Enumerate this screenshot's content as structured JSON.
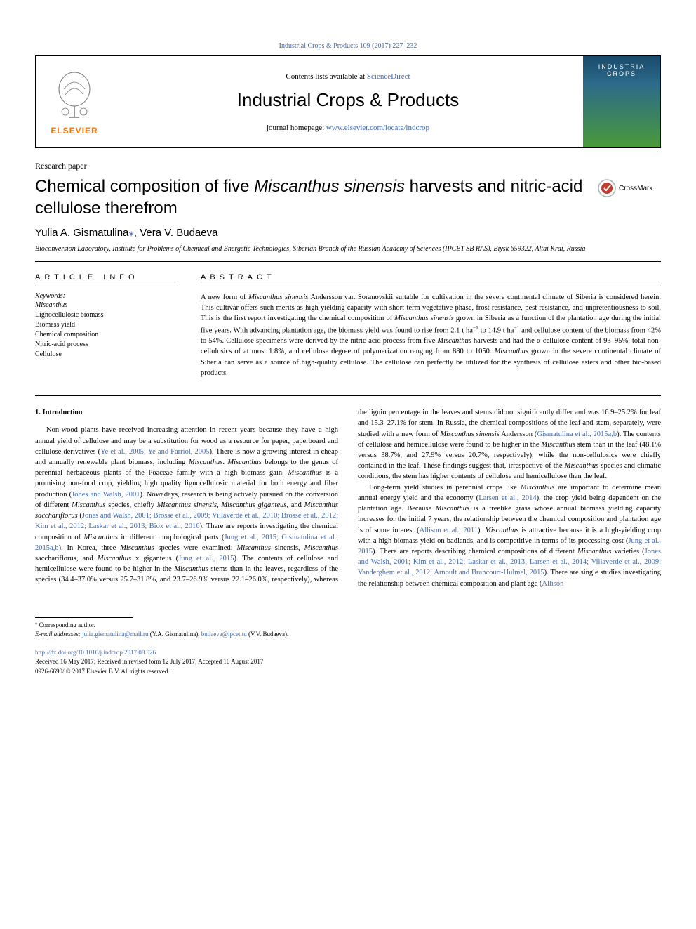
{
  "top_citation": {
    "prefix": "",
    "link_text": "Industrial Crops & Products 109 (2017) 227–232",
    "colors": {
      "link": "#4169b0"
    }
  },
  "journal_box": {
    "contents_label": "Contents lists available at ",
    "contents_link": "ScienceDirect",
    "journal_name": "Industrial Crops & Products",
    "homepage_label": "journal homepage: ",
    "homepage_link": "www.elsevier.com/locate/indcrop",
    "publisher_logo_label": "ELSEVIER",
    "cover": {
      "line1": "INDUSTRIA",
      "line2": "CROPS"
    },
    "colors": {
      "elsevier_orange": "#ff7700",
      "cover_grad_top": "#1a4a6a",
      "cover_grad_bot": "#4a9a3a"
    }
  },
  "paper_type": "Research paper",
  "title": {
    "pre": "Chemical composition of five ",
    "ital": "Miscanthus sinensis",
    "post": " harvests and nitric-acid cellulose therefrom"
  },
  "crossmark_label": "CrossMark",
  "authors": {
    "a1": "Yulia A. Gismatulina",
    "a1_mark": "⁎",
    "sep": ", ",
    "a2": "Vera V. Budaeva"
  },
  "affiliation": "Bioconversion Laboratory, Institute for Problems of Chemical and Energetic Technologies, Siberian Branch of the Russian Academy of Sciences (IPCET SB RAS), Biysk 659322, Altai Krai, Russia",
  "article_info": {
    "heading": "ARTICLE INFO",
    "kw_heading": "Keywords:",
    "keywords": [
      "Miscanthus",
      "Lignocellulosic biomass",
      "Biomass yield",
      "Chemical composition",
      "Nitric-acid process",
      "Cellulose"
    ]
  },
  "abstract": {
    "heading": "ABSTRACT",
    "text_parts": [
      {
        "t": "A new form of "
      },
      {
        "i": "Miscanthus sinensis"
      },
      {
        "t": " Andersson var. Soranovskii suitable for cultivation in the severe continental climate of Siberia is considered herein. This cultivar offers such merits as high yielding capacity with short-term vegetative phase, frost resistance, pest resistance, and unpretentiousness to soil. This is the first report investigating the chemical composition of "
      },
      {
        "i": "Miscanthus sinensis"
      },
      {
        "t": " grown in Siberia as a function of the plantation age during the initial five years. With advancing plantation age, the biomass yield was found to rise from 2.1 t ha"
      },
      {
        "sup": "−1"
      },
      {
        "t": " to 14.9 t ha"
      },
      {
        "sup": "−1"
      },
      {
        "t": " and cellulose content of the biomass from 42% to 54%. Cellulose specimens were derived by the nitric-acid process from five "
      },
      {
        "i": "Miscanthus"
      },
      {
        "t": " harvests and had the α-cellulose content of 93–95%, total non-cellulosics of at most 1.8%, and cellulose degree of polymerization ranging from 880 to 1050. "
      },
      {
        "i": "Miscanthus"
      },
      {
        "t": " grown in the severe continental climate of Siberia can serve as a source of high-quality cellulose. The cellulose can perfectly be utilized for the synthesis of cellulose esters and other bio-based products."
      }
    ]
  },
  "sections": {
    "intro_head": "1. Introduction",
    "para1": [
      {
        "t": "Non-wood plants have received increasing attention in recent years because they have a high annual yield of cellulose and may be a substitution for wood as a resource for paper, paperboard and cellulose derivatives ("
      },
      {
        "a": "Ye et al., 2005; Ye and Farriol, 2005"
      },
      {
        "t": "). There is now a growing interest in cheap and annually renewable plant biomass, including "
      },
      {
        "i": "Miscanthus"
      },
      {
        "t": ". "
      },
      {
        "i": "Miscanthus"
      },
      {
        "t": " belongs to the genus of perennial herbaceous plants of the Poaceae family with a high biomass gain. "
      },
      {
        "i": "Miscanthus"
      },
      {
        "t": " is a promising non-food crop, yielding high quality lignocellulosic material for both energy and fiber production ("
      },
      {
        "a": "Jones and Walsh, 2001"
      },
      {
        "t": "). Nowadays, research is being actively pursued on the conversion of different "
      },
      {
        "i": "Miscanthus"
      },
      {
        "t": " species, chiefly "
      },
      {
        "i": "Miscanthus sinensis"
      },
      {
        "t": ", "
      },
      {
        "i": "Miscanthus giganteus"
      },
      {
        "t": ", and "
      },
      {
        "i": "Miscanthus sacchariflorus"
      },
      {
        "t": " ("
      },
      {
        "a": "Jones and Walsh, 2001; Brosse et al., 2009; Villaverde et al., 2010; Brosse et al., 2012; Kim et al., 2012; Laskar et al., 2013; Biox et al., 2016"
      },
      {
        "t": "). There are reports investigating the chemical composition of "
      },
      {
        "i": "Miscanthus"
      },
      {
        "t": " in different morphological parts ("
      },
      {
        "a": "Jung et al., 2015; Gismatulina et al., 2015a,b"
      },
      {
        "t": "). In Korea, three "
      },
      {
        "i": "Miscanthus"
      },
      {
        "t": " species were examined: "
      },
      {
        "i": "Miscanthus"
      },
      {
        "t": " sinensis, "
      },
      {
        "i": "Miscanthus"
      },
      {
        "t": " sacchariflorus, and "
      },
      {
        "i": "Miscanthus"
      },
      {
        "t": " x giganteus ("
      },
      {
        "a": "Jung et al., 2015"
      },
      {
        "t": "). The contents of cellulose and hemicellulose were found to be higher in the "
      },
      {
        "i": "Miscanthus"
      },
      {
        "t": " stems than in the leaves, regardless of the species (34.4–37.0% versus 25.7–31.8%, and 23.7–26.9% versus 22.1–26.0%, respectively), whereas the lignin percentage in the leaves and stems did not significantly differ and was 16.9–25.2% for leaf and 15.3–27.1% for stem. In Russia, the chemical compositions of the leaf and stem, separately, were studied with a new form of "
      },
      {
        "i": "Miscanthus sinensis"
      },
      {
        "t": " Andersson ("
      },
      {
        "a": "Gismatulina et al., 2015a,b"
      },
      {
        "t": "). The contents of cellulose and hemicellulose were found to be higher in the "
      },
      {
        "i": "Miscanthus"
      },
      {
        "t": " stem than in the leaf (48.1% versus 38.7%, and 27.9% versus 20.7%, respectively), while the non-cellulosics were chiefly contained in the leaf. These findings suggest that, irrespective of the "
      },
      {
        "i": "Miscanthus"
      },
      {
        "t": " species and climatic conditions, the stem has higher contents of cellulose and hemicellulose than the leaf."
      }
    ],
    "para2": [
      {
        "t": "Long-term yield studies in perennial crops like "
      },
      {
        "i": "Miscanthus"
      },
      {
        "t": " are important to determine mean annual energy yield and the economy ("
      },
      {
        "a": "Larsen et al., 2014"
      },
      {
        "t": "), the crop yield being dependent on the plantation age. Because "
      },
      {
        "i": "Miscanthus"
      },
      {
        "t": " is a treelike grass whose annual biomass yielding capacity increases for the initial 7 years, the relationship between the chemical composition and plantation age is of some interest ("
      },
      {
        "a": "Allison et al., 2011"
      },
      {
        "t": "). "
      },
      {
        "i": "Miscanthus"
      },
      {
        "t": " is attractive because it is a high-yielding crop with a high biomass yield on badlands, and is competitive in terms of its processing cost ("
      },
      {
        "a": "Jung et al., 2015"
      },
      {
        "t": "). There are reports describing chemical compositions of different "
      },
      {
        "i": "Miscanthus"
      },
      {
        "t": " varieties ("
      },
      {
        "a": "Jones and Walsh, 2001; Kim et al., 2012; Laskar et al., 2013; Larsen et al., 2014; Villaverde et al., 2009; Vanderghem et al., 2012; Arnoult and Brancourt-Hulmel, 2015"
      },
      {
        "t": "). There are single studies investigating the relationship between chemical composition and plant age ("
      },
      {
        "a": "Allison"
      }
    ]
  },
  "footer": {
    "corr_mark": "⁎",
    "corr_label": " Corresponding author.",
    "email_label": "E-mail addresses: ",
    "email1": "julia.gismatulina@mail.ru",
    "email1_person": " (Y.A. Gismatulina), ",
    "email2": "budaeva@ipcet.tu",
    "email2_person": " (V.V. Budaeva).",
    "doi": "http://dx.doi.org/10.1016/j.indcrop.2017.08.026",
    "received": "Received 16 May 2017; Received in revised form 12 July 2017; Accepted 16 August 2017",
    "issn_copy": "0926-6690/ © 2017 Elsevier B.V. All rights reserved."
  },
  "typography": {
    "body_fontsize_pt": 10.5,
    "title_fontsize_pt": 24,
    "journal_fontsize_pt": 26,
    "small_fontsize_pt": 9
  }
}
